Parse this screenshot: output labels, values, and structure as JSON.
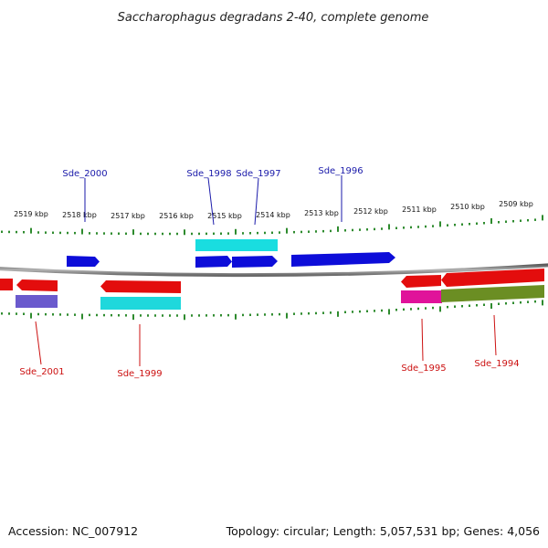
{
  "title": "Saccharophagus degradans 2-40, complete genome",
  "footer": {
    "accession": "Accession: NC_007912",
    "summary": "Topology: circular; Length: 5,057,531 bp; Genes: 4,056"
  },
  "colors": {
    "backbone": "#8a8a8a",
    "tick": "#2e8b2e",
    "label_forward": "#1a1aaa",
    "label_reverse": "#cc1111",
    "forward_cds": "#0d0dd9",
    "forward_rna": "#19dde0",
    "reverse_cds": "#e30d0d",
    "reverse_rna": "#1fd8dc",
    "purple": "#6a5acd",
    "magenta": "#e0139a",
    "olive": "#6b8e23"
  },
  "ticks": {
    "labels": [
      "2519 kbp",
      "2518 kbp",
      "2517 kbp",
      "2516 kbp",
      "2515 kbp",
      "2514 kbp",
      "2513 kbp",
      "2512 kbp",
      "2511 kbp",
      "2510 kbp",
      "2509 kbp"
    ]
  },
  "genes_forward": [
    {
      "label": "Sde_2000"
    },
    {
      "label": "Sde_1998"
    },
    {
      "label": "Sde_1997"
    },
    {
      "label": "Sde_1996"
    }
  ],
  "genes_reverse": [
    {
      "label": "Sde_2001"
    },
    {
      "label": "Sde_1999"
    },
    {
      "label": "Sde_1995"
    },
    {
      "label": "Sde_1994"
    }
  ]
}
